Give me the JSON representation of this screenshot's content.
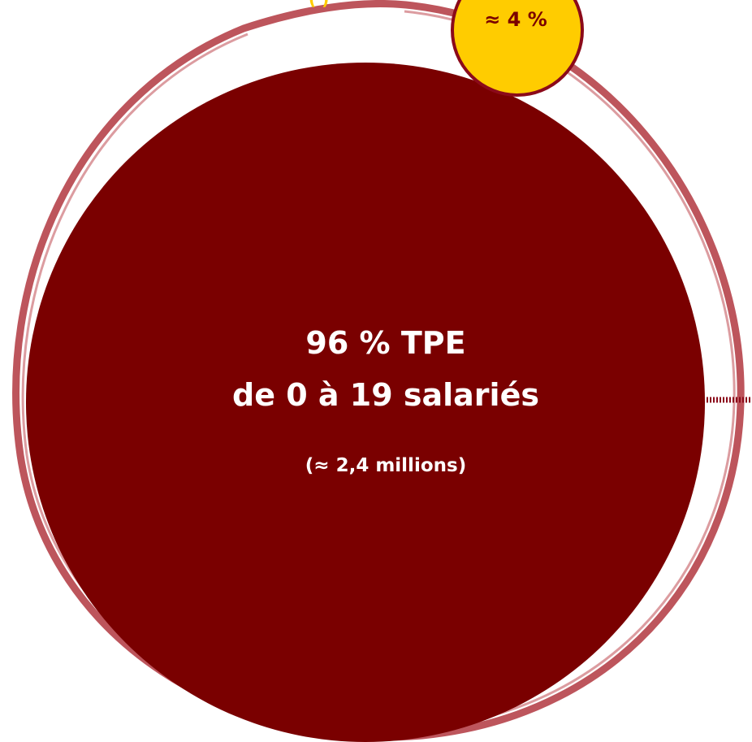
{
  "colors": {
    "main_circle": "#7a0000",
    "small_circle": "#ffcc00",
    "small_circle_border": "#8b0a1a",
    "ring": "#b2373f",
    "text_light": "#ffffff",
    "text_dark": "#7a0000"
  },
  "main_circle": {
    "title": "96 % TPE",
    "subtitle": "de 0 à 19 salariés",
    "count": "(≈ 2,4 millions)"
  },
  "small_circle": {
    "value": "≈ 4 %"
  }
}
